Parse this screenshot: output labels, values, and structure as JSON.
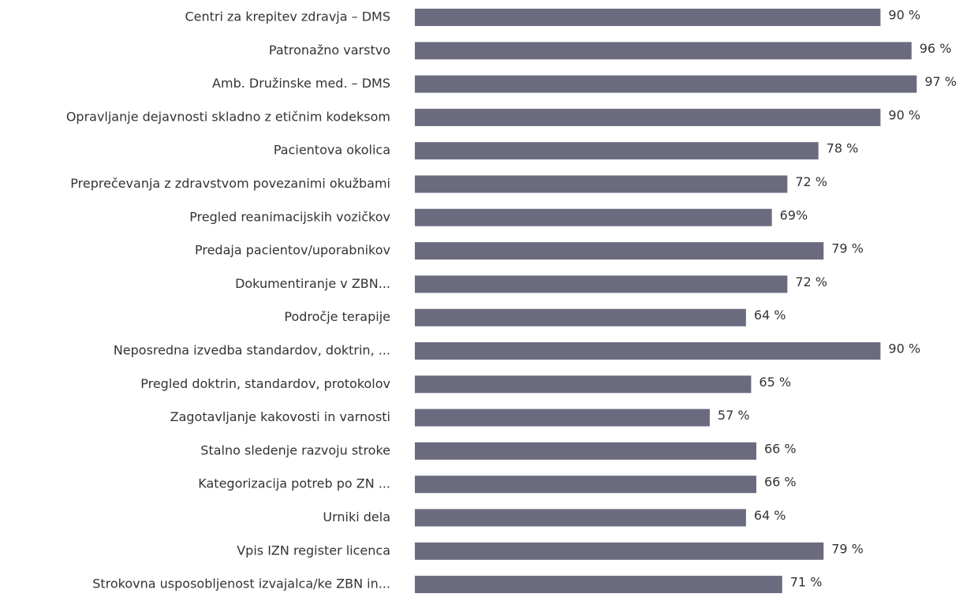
{
  "chart_data": {
    "type": "bar",
    "orientation": "horizontal",
    "categories": [
      "Centri za krepitev zdravja – DMS",
      "Patronažno varstvo",
      "Amb. Družinske med. – DMS",
      "Opravljanje dejavnosti skladno z etičnim kodeksom",
      "Pacientova okolica",
      "Preprečevanja z zdravstvom povezanimi okužbami",
      "Pregled reanimacijskih vozičkov",
      "Predaja pacientov/uporabnikov",
      "Dokumentiranje v ZBN...",
      "Področje terapije",
      "Neposredna izvedba standardov, doktrin, ...",
      "Pregled doktrin, standardov, protokolov",
      "Zagotavljanje kakovosti in varnosti",
      "Stalno sledenje razvoju stroke",
      "Kategorizacija potreb po ZN ...",
      "Urniki dela",
      "Vpis IZN register licenca",
      "Strokovna usposobljenost izvajalca/ke ZBN in..."
    ],
    "values": [
      90,
      96,
      97,
      90,
      78,
      72,
      69,
      79,
      72,
      64,
      90,
      65,
      57,
      66,
      66,
      64,
      79,
      71
    ],
    "value_labels": [
      "90 %",
      "96 %",
      "97 %",
      "90 %",
      "78 %",
      "72 %",
      "69%",
      "79 %",
      "72 %",
      "64 %",
      "90 %",
      "65 %",
      "57 %",
      "66 %",
      "66 %",
      "64 %",
      "79 %",
      "71 %"
    ],
    "color": "#6b6b80",
    "xlim": [
      0,
      100
    ]
  }
}
